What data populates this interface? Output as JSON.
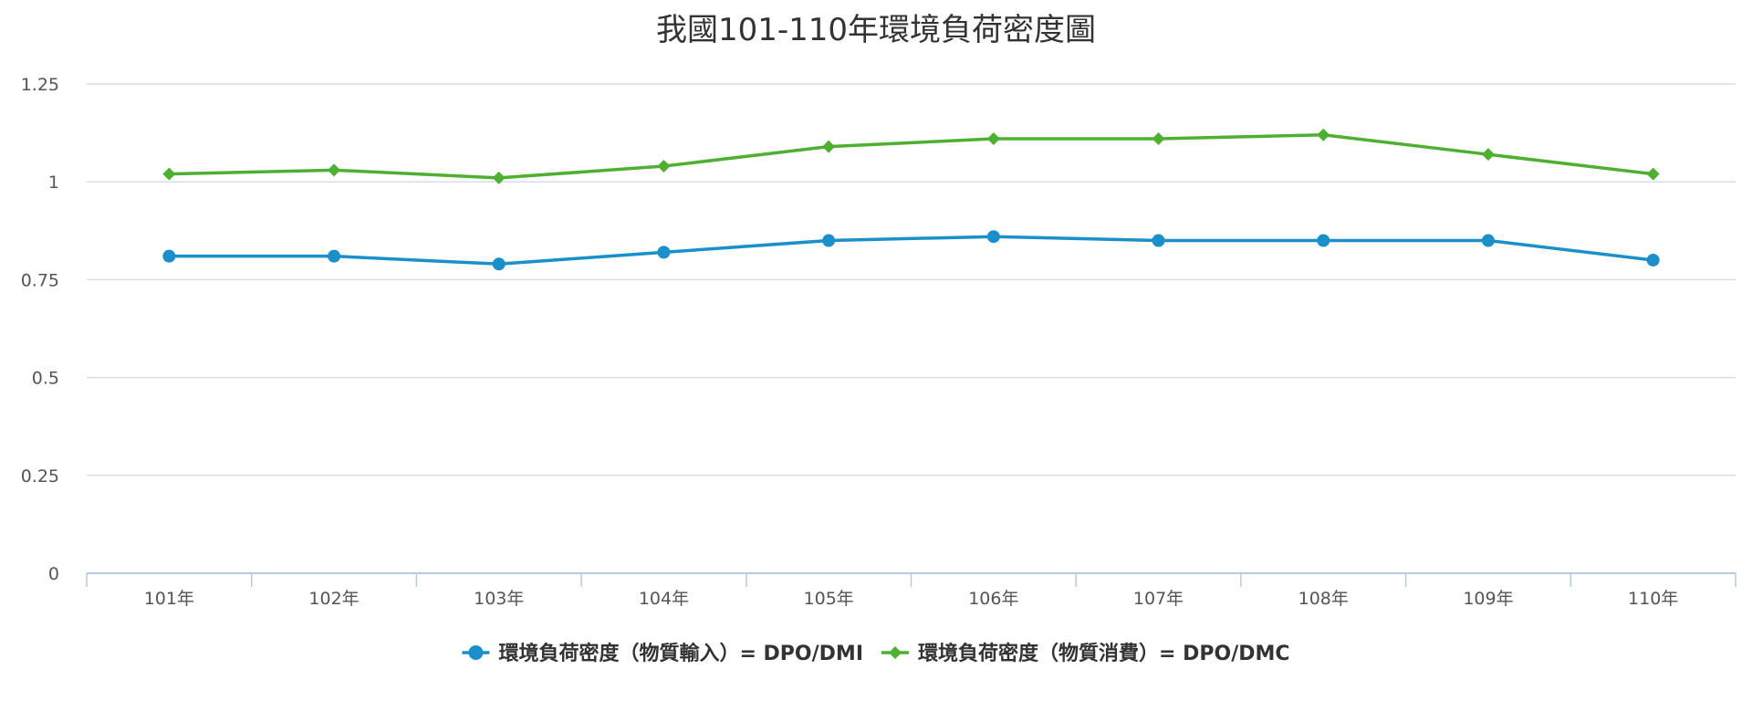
{
  "chart_data": {
    "type": "line",
    "title": "我國101-110年環境負荷密度圖",
    "xlabel": "",
    "ylabel": "",
    "categories": [
      "101年",
      "102年",
      "103年",
      "104年",
      "105年",
      "106年",
      "107年",
      "108年",
      "109年",
      "110年"
    ],
    "ylim": [
      0,
      1.25
    ],
    "yticks": [
      0,
      0.25,
      0.5,
      0.75,
      1,
      1.25
    ],
    "ytick_labels": [
      "0",
      "0.25",
      "0.5",
      "0.75",
      "1",
      "1.25"
    ],
    "grid": true,
    "legend_position": "bottom",
    "series": [
      {
        "name": "環境負荷密度（物質輸入）= DPO/DMI",
        "color": "#1a8fc9",
        "marker": "circle",
        "values": [
          0.81,
          0.81,
          0.79,
          0.82,
          0.85,
          0.86,
          0.85,
          0.85,
          0.85,
          0.8
        ]
      },
      {
        "name": "環境負荷密度（物質消費）= DPO/DMC",
        "color": "#4db030",
        "marker": "diamond",
        "values": [
          1.02,
          1.03,
          1.01,
          1.04,
          1.09,
          1.11,
          1.11,
          1.12,
          1.07,
          1.02
        ]
      }
    ]
  }
}
